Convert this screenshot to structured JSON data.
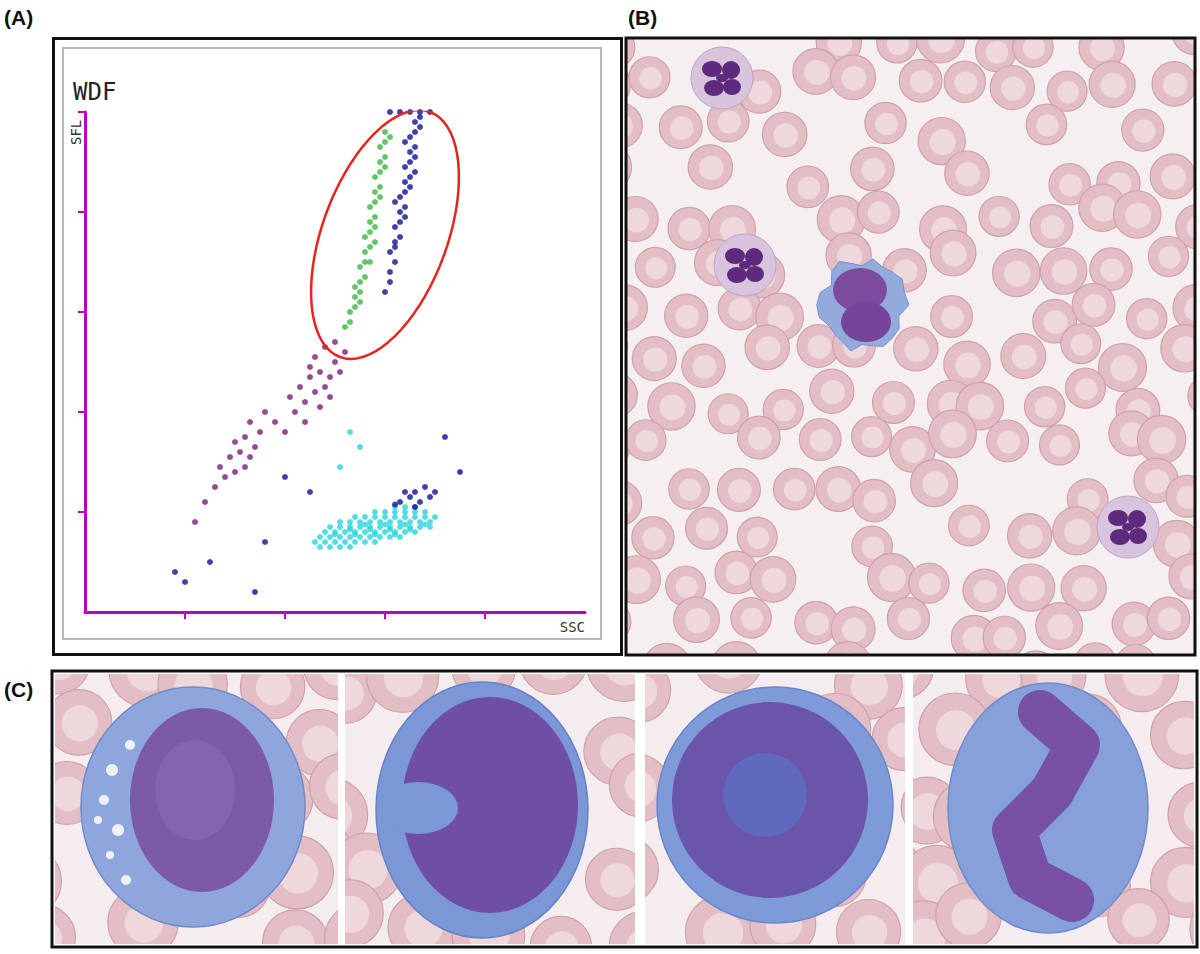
{
  "panels": [
    "(A)",
    "(B)",
    "(C)"
  ],
  "chart_data": {
    "type": "scatter",
    "title": "WDF",
    "x_label": "SSC",
    "y_label": "SFL",
    "xlim": [
      0,
      100
    ],
    "ylim": [
      0,
      100
    ],
    "xticks": [
      20,
      40,
      60,
      80
    ],
    "yticks": [
      20,
      40,
      60,
      80,
      100
    ],
    "tick_labels": false,
    "grid": false,
    "series": [
      {
        "color": "#2ad4dd",
        "values": [
          [
            47,
            13
          ],
          [
            49,
            13
          ],
          [
            51,
            13
          ],
          [
            53,
            13
          ],
          [
            46,
            14
          ],
          [
            48,
            14
          ],
          [
            50,
            14
          ],
          [
            52,
            14
          ],
          [
            54,
            14
          ],
          [
            56,
            14
          ],
          [
            58,
            14
          ],
          [
            47,
            15
          ],
          [
            49,
            15
          ],
          [
            51,
            15
          ],
          [
            53,
            15
          ],
          [
            55,
            15
          ],
          [
            57,
            15
          ],
          [
            59,
            15
          ],
          [
            61,
            15
          ],
          [
            63,
            15
          ],
          [
            50,
            15.5
          ],
          [
            54,
            15.5
          ],
          [
            58,
            15.5
          ],
          [
            62,
            15.5
          ],
          [
            48,
            16
          ],
          [
            50,
            16
          ],
          [
            52,
            16
          ],
          [
            54,
            16
          ],
          [
            56,
            16
          ],
          [
            58,
            16
          ],
          [
            60,
            16
          ],
          [
            62,
            16
          ],
          [
            64,
            16
          ],
          [
            66,
            16
          ],
          [
            53,
            16.5
          ],
          [
            57,
            16.5
          ],
          [
            61,
            16.5
          ],
          [
            65,
            16.5
          ],
          [
            49,
            17
          ],
          [
            51,
            17
          ],
          [
            53,
            17
          ],
          [
            55,
            17
          ],
          [
            57,
            17
          ],
          [
            59,
            17
          ],
          [
            61,
            17
          ],
          [
            63,
            17
          ],
          [
            65,
            17
          ],
          [
            67,
            17
          ],
          [
            69,
            17
          ],
          [
            56,
            17.5
          ],
          [
            60,
            17.5
          ],
          [
            64,
            17.5
          ],
          [
            68,
            17.5
          ],
          [
            51,
            18
          ],
          [
            53,
            18
          ],
          [
            55,
            18
          ],
          [
            57,
            18
          ],
          [
            59,
            18
          ],
          [
            61,
            18
          ],
          [
            63,
            18
          ],
          [
            65,
            18
          ],
          [
            67,
            18
          ],
          [
            69,
            18
          ],
          [
            54,
            19
          ],
          [
            56,
            19
          ],
          [
            58,
            19
          ],
          [
            60,
            19
          ],
          [
            62,
            19
          ],
          [
            64,
            19
          ],
          [
            66,
            19
          ],
          [
            68,
            19
          ],
          [
            70,
            19
          ],
          [
            58,
            20
          ],
          [
            60,
            20
          ],
          [
            62,
            20
          ],
          [
            64,
            20
          ],
          [
            66,
            20
          ],
          [
            68,
            20
          ],
          [
            62,
            21
          ],
          [
            64,
            21
          ],
          [
            66,
            21
          ],
          [
            53,
            36
          ],
          [
            55,
            33
          ],
          [
            51,
            29
          ]
        ]
      },
      {
        "color": "#12129a",
        "values": [
          [
            63,
            22
          ],
          [
            65,
            23
          ],
          [
            67,
            22
          ],
          [
            66,
            24
          ],
          [
            68,
            25
          ],
          [
            64,
            24
          ],
          [
            69,
            23
          ],
          [
            62,
            21.5
          ],
          [
            66,
            21
          ],
          [
            70,
            24
          ],
          [
            18,
            8
          ],
          [
            20,
            6
          ],
          [
            25,
            10
          ],
          [
            34,
            4
          ],
          [
            36,
            14
          ],
          [
            72,
            35
          ],
          [
            75,
            28
          ],
          [
            45,
            24
          ],
          [
            40,
            27
          ]
        ]
      },
      {
        "color": "#7a1f7a",
        "values": [
          [
            28,
            27
          ],
          [
            30,
            28
          ],
          [
            32,
            29
          ],
          [
            29,
            31
          ],
          [
            31,
            32
          ],
          [
            33,
            31
          ],
          [
            30,
            34
          ],
          [
            32,
            35
          ],
          [
            34,
            33
          ],
          [
            27,
            29
          ],
          [
            35,
            36
          ],
          [
            33,
            38
          ],
          [
            42,
            40
          ],
          [
            44,
            42
          ],
          [
            46,
            44
          ],
          [
            48,
            45
          ],
          [
            45,
            47
          ],
          [
            47,
            48
          ],
          [
            49,
            47
          ],
          [
            43,
            45
          ],
          [
            50,
            50
          ],
          [
            46,
            51
          ],
          [
            48,
            53
          ],
          [
            51,
            48
          ],
          [
            44,
            38
          ],
          [
            47,
            41
          ],
          [
            49,
            43
          ],
          [
            45,
            49
          ],
          [
            50,
            54
          ],
          [
            52,
            52
          ],
          [
            41,
            43
          ],
          [
            38,
            38
          ],
          [
            40,
            36
          ],
          [
            36,
            40
          ],
          [
            24,
            22
          ],
          [
            26,
            25
          ],
          [
            22,
            18
          ]
        ]
      },
      {
        "color": "#3db843",
        "values": [
          [
            52,
            57
          ],
          [
            53,
            58
          ],
          [
            53,
            60
          ],
          [
            54,
            61
          ],
          [
            54,
            63
          ],
          [
            55,
            62
          ],
          [
            54,
            65
          ],
          [
            55,
            66
          ],
          [
            56,
            67
          ],
          [
            55,
            69
          ],
          [
            56,
            70
          ],
          [
            56,
            72
          ],
          [
            57,
            73
          ],
          [
            56,
            75
          ],
          [
            57,
            76
          ],
          [
            57,
            78
          ],
          [
            58,
            79
          ],
          [
            57,
            81
          ],
          [
            58,
            82
          ],
          [
            58,
            84
          ],
          [
            59,
            85
          ],
          [
            58,
            87
          ],
          [
            59,
            88
          ],
          [
            59,
            90
          ],
          [
            60,
            91
          ],
          [
            59,
            93
          ],
          [
            60,
            94
          ],
          [
            60,
            96
          ],
          [
            58,
            74
          ],
          [
            55,
            64
          ],
          [
            57,
            70
          ],
          [
            58,
            77
          ],
          [
            59,
            83
          ],
          [
            60,
            89
          ],
          [
            61,
            95
          ]
        ]
      },
      {
        "color": "#12129a",
        "values": [
          [
            60,
            64
          ],
          [
            61,
            66
          ],
          [
            61,
            68
          ],
          [
            62,
            70
          ],
          [
            61,
            72
          ],
          [
            62,
            73
          ],
          [
            63,
            75
          ],
          [
            62,
            77
          ],
          [
            63,
            78
          ],
          [
            63,
            80
          ],
          [
            64,
            81
          ],
          [
            63,
            83
          ],
          [
            64,
            84
          ],
          [
            64,
            86
          ],
          [
            65,
            87
          ],
          [
            64,
            89
          ],
          [
            65,
            90
          ],
          [
            65,
            92
          ],
          [
            66,
            93
          ],
          [
            65,
            95
          ],
          [
            66,
            96
          ],
          [
            66,
            98
          ],
          [
            67,
            99
          ],
          [
            63,
            100
          ],
          [
            65,
            100
          ],
          [
            67,
            100
          ],
          [
            62,
            74
          ],
          [
            64,
            79
          ],
          [
            65,
            85
          ],
          [
            66,
            91
          ],
          [
            67,
            97
          ],
          [
            61,
            100
          ],
          [
            69,
            100
          ],
          [
            62,
            82
          ],
          [
            64,
            94
          ],
          [
            66,
            88
          ]
        ]
      }
    ],
    "annotations": [
      {
        "shape": "ellipse",
        "from": [
          51,
          51
        ],
        "to": [
          69,
          100
        ],
        "half_width": 12.5,
        "color": "#e8231e"
      }
    ]
  }
}
